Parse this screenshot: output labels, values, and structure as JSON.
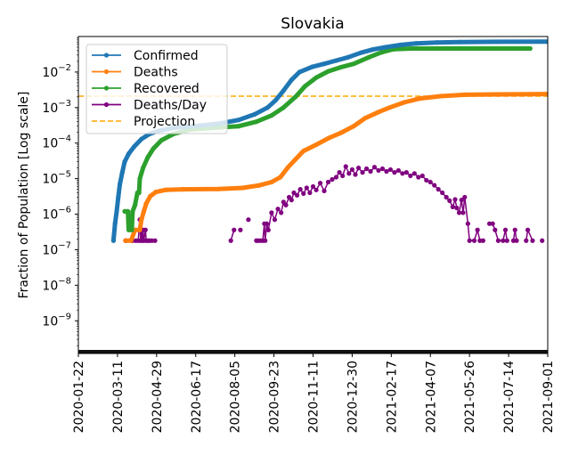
{
  "chart_data": {
    "type": "line",
    "title": "Slovakia",
    "xlabel": "",
    "ylabel": "Fraction of Population [Log scale]",
    "yscale": "log",
    "ylim": [
      1.2e-10,
      0.1
    ],
    "xlim": [
      "2020-01-22",
      "2021-09-01"
    ],
    "grid": false,
    "legend_position": "top-left",
    "x_ticks": [
      "2020-01-22",
      "2020-03-11",
      "2020-04-29",
      "2020-06-17",
      "2020-08-05",
      "2020-09-23",
      "2020-11-11",
      "2020-12-30",
      "2021-02-17",
      "2021-04-07",
      "2021-05-26",
      "2021-07-14",
      "2021-09-01"
    ],
    "y_ticks": [
      {
        "value": 1e-09,
        "label": "10",
        "exp": "−9"
      },
      {
        "value": 1e-08,
        "label": "10",
        "exp": "−8"
      },
      {
        "value": 1e-07,
        "label": "10",
        "exp": "−7"
      },
      {
        "value": 1e-06,
        "label": "10",
        "exp": "−6"
      },
      {
        "value": 1e-05,
        "label": "10",
        "exp": "−5"
      },
      {
        "value": 0.0001,
        "label": "10",
        "exp": "−4"
      },
      {
        "value": 0.001,
        "label": "10",
        "exp": "−3"
      },
      {
        "value": 0.01,
        "label": "10",
        "exp": "−2"
      }
    ],
    "series": [
      {
        "name": "Confirmed",
        "color": "#1f77b4",
        "style": "solid-marker",
        "points": [
          [
            "2020-03-06",
            1.8e-07
          ],
          [
            "2020-03-08",
            5.5e-07
          ],
          [
            "2020-03-10",
            1.2e-06
          ],
          [
            "2020-03-12",
            3e-06
          ],
          [
            "2020-03-14",
            7e-06
          ],
          [
            "2020-03-17",
            1.5e-05
          ],
          [
            "2020-03-20",
            3e-05
          ],
          [
            "2020-03-25",
            5e-05
          ],
          [
            "2020-04-01",
            8e-05
          ],
          [
            "2020-04-10",
            0.00013
          ],
          [
            "2020-04-20",
            0.00018
          ],
          [
            "2020-05-01",
            0.00022
          ],
          [
            "2020-05-20",
            0.00027
          ],
          [
            "2020-06-15",
            0.0003
          ],
          [
            "2020-07-15",
            0.00035
          ],
          [
            "2020-08-10",
            0.00045
          ],
          [
            "2020-08-30",
            0.00065
          ],
          [
            "2020-09-15",
            0.001
          ],
          [
            "2020-09-25",
            0.0016
          ],
          [
            "2020-10-05",
            0.003
          ],
          [
            "2020-10-15",
            0.006
          ],
          [
            "2020-10-25",
            0.01
          ],
          [
            "2020-11-10",
            0.014
          ],
          [
            "2020-11-25",
            0.017
          ],
          [
            "2020-12-10",
            0.021
          ],
          [
            "2020-12-25",
            0.026
          ],
          [
            "2021-01-10",
            0.035
          ],
          [
            "2021-01-25",
            0.043
          ],
          [
            "2021-02-10",
            0.05
          ],
          [
            "2021-03-01",
            0.058
          ],
          [
            "2021-03-20",
            0.064
          ],
          [
            "2021-04-15",
            0.068
          ],
          [
            "2021-05-15",
            0.07
          ],
          [
            "2021-07-01",
            0.071
          ],
          [
            "2021-09-01",
            0.072
          ]
        ]
      },
      {
        "name": "Deaths",
        "color": "#ff7f0e",
        "style": "solid-marker",
        "points": [
          [
            "2020-03-21",
            1.8e-07
          ],
          [
            "2020-03-28",
            1.8e-07
          ],
          [
            "2020-04-02",
            3.6e-07
          ],
          [
            "2020-04-08",
            3.6e-07
          ],
          [
            "2020-04-10",
            7e-07
          ],
          [
            "2020-04-13",
            1.2e-06
          ],
          [
            "2020-04-16",
            2e-06
          ],
          [
            "2020-04-21",
            3.2e-06
          ],
          [
            "2020-04-28",
            4.2e-06
          ],
          [
            "2020-05-10",
            4.8e-06
          ],
          [
            "2020-06-01",
            5e-06
          ],
          [
            "2020-07-15",
            5.1e-06
          ],
          [
            "2020-08-15",
            5.5e-06
          ],
          [
            "2020-09-05",
            6.5e-06
          ],
          [
            "2020-09-20",
            8e-06
          ],
          [
            "2020-10-01",
            1.1e-05
          ],
          [
            "2020-10-10",
            2e-05
          ],
          [
            "2020-10-20",
            3.5e-05
          ],
          [
            "2020-10-30",
            6e-05
          ],
          [
            "2020-11-15",
            9e-05
          ],
          [
            "2020-12-01",
            0.00014
          ],
          [
            "2020-12-15",
            0.00019
          ],
          [
            "2021-01-01",
            0.0003
          ],
          [
            "2021-01-15",
            0.0005
          ],
          [
            "2021-02-01",
            0.00075
          ],
          [
            "2021-02-15",
            0.001
          ],
          [
            "2021-03-05",
            0.0014
          ],
          [
            "2021-03-25",
            0.0018
          ],
          [
            "2021-04-20",
            0.0021
          ],
          [
            "2021-05-20",
            0.0023
          ],
          [
            "2021-07-01",
            0.00235
          ],
          [
            "2021-09-01",
            0.0024
          ]
        ]
      },
      {
        "name": "Recovered",
        "color": "#2ca02c",
        "style": "solid-marker",
        "points": [
          [
            "2020-03-20",
            1.2e-06
          ],
          [
            "2020-03-24",
            1.2e-06
          ],
          [
            "2020-03-25",
            3.6e-07
          ],
          [
            "2020-03-29",
            3.6e-07
          ],
          [
            "2020-03-30",
            1.2e-06
          ],
          [
            "2020-04-02",
            1.8e-06
          ],
          [
            "2020-04-05",
            4e-06
          ],
          [
            "2020-04-07",
            4e-06
          ],
          [
            "2020-04-08",
            1e-05
          ],
          [
            "2020-04-12",
            2e-05
          ],
          [
            "2020-04-18",
            4e-05
          ],
          [
            "2020-04-25",
            7e-05
          ],
          [
            "2020-05-05",
            0.00012
          ],
          [
            "2020-05-20",
            0.00018
          ],
          [
            "2020-06-10",
            0.00024
          ],
          [
            "2020-07-10",
            0.00027
          ],
          [
            "2020-08-10",
            0.0003
          ],
          [
            "2020-09-01",
            0.0004
          ],
          [
            "2020-09-20",
            0.0006
          ],
          [
            "2020-10-05",
            0.001
          ],
          [
            "2020-10-20",
            0.002
          ],
          [
            "2020-11-01",
            0.004
          ],
          [
            "2020-11-15",
            0.007
          ],
          [
            "2020-11-30",
            0.0105
          ],
          [
            "2020-12-15",
            0.0135
          ],
          [
            "2021-01-01",
            0.017
          ],
          [
            "2021-01-20",
            0.026
          ],
          [
            "2021-02-05",
            0.036
          ],
          [
            "2021-02-20",
            0.044
          ],
          [
            "2021-03-15",
            0.046
          ],
          [
            "2021-05-01",
            0.046
          ],
          [
            "2021-08-10",
            0.046
          ]
        ]
      },
      {
        "name": "Deaths/Day",
        "color": "#800080",
        "style": "solid-marker",
        "points": [
          [
            "2020-03-21",
            1.8e-07
          ],
          [
            "2020-03-22",
            1.8e-07
          ],
          [
            "2020-03-29",
            1.8e-07
          ],
          [
            "2020-03-30",
            1.8e-07
          ],
          [
            "2020-04-03",
            1.8e-07
          ],
          [
            "2020-04-06",
            1.8e-07
          ],
          [
            "2020-04-08",
            7e-07
          ],
          [
            "2020-04-09",
            1.8e-07
          ],
          [
            "2020-04-10",
            3.6e-07
          ],
          [
            "2020-04-11",
            1.8e-07
          ],
          [
            "2020-04-12",
            3.6e-07
          ],
          [
            "2020-04-13",
            1.8e-07
          ],
          [
            "2020-04-15",
            3.6e-07
          ],
          [
            "2020-04-16",
            1.8e-07
          ],
          [
            "2020-04-18",
            1.8e-07
          ],
          [
            "2020-04-20",
            1.8e-07
          ],
          [
            "2020-04-23",
            1.8e-07
          ],
          [
            "2020-04-27",
            1.8e-07
          ],
          [
            "2020-07-31",
            1.8e-07
          ],
          [
            "2020-08-04",
            3.6e-07
          ],
          [
            "2020-08-12",
            3.6e-07
          ],
          [
            "2020-08-22",
            7e-07
          ],
          [
            "2020-09-01",
            1.8e-07
          ],
          [
            "2020-09-03",
            1.8e-07
          ],
          [
            "2020-09-06",
            1.8e-07
          ],
          [
            "2020-09-09",
            1.8e-07
          ],
          [
            "2020-09-11",
            5.4e-07
          ],
          [
            "2020-09-12",
            1.8e-07
          ],
          [
            "2020-09-14",
            5.4e-07
          ],
          [
            "2020-09-16",
            3.6e-07
          ],
          [
            "2020-09-20",
            1.1e-06
          ],
          [
            "2020-09-24",
            7e-07
          ],
          [
            "2020-09-28",
            1.4e-06
          ],
          [
            "2020-10-02",
            1.1e-06
          ],
          [
            "2020-10-05",
            2.2e-06
          ],
          [
            "2020-10-08",
            1.8e-06
          ],
          [
            "2020-10-12",
            3e-06
          ],
          [
            "2020-10-15",
            2.5e-06
          ],
          [
            "2020-10-18",
            4e-06
          ],
          [
            "2020-10-22",
            3.4e-06
          ],
          [
            "2020-10-26",
            5e-06
          ],
          [
            "2020-10-30",
            3.8e-06
          ],
          [
            "2020-11-03",
            5.5e-06
          ],
          [
            "2020-11-07",
            4e-06
          ],
          [
            "2020-11-11",
            6e-06
          ],
          [
            "2020-11-15",
            4.8e-06
          ],
          [
            "2020-11-20",
            7.5e-06
          ],
          [
            "2020-11-25",
            4.5e-06
          ],
          [
            "2020-11-30",
            8e-06
          ],
          [
            "2020-12-05",
            9.5e-06
          ],
          [
            "2020-12-10",
            1.1e-05
          ],
          [
            "2020-12-14",
            1.5e-05
          ],
          [
            "2020-12-18",
            1.2e-05
          ],
          [
            "2020-12-22",
            2.2e-05
          ],
          [
            "2020-12-26",
            1.4e-05
          ],
          [
            "2020-12-30",
            1.8e-05
          ],
          [
            "2021-01-03",
            1.3e-05
          ],
          [
            "2021-01-07",
            2e-05
          ],
          [
            "2021-01-12",
            1.5e-05
          ],
          [
            "2021-01-17",
            1.9e-05
          ],
          [
            "2021-01-22",
            1.6e-05
          ],
          [
            "2021-01-27",
            2.1e-05
          ],
          [
            "2021-02-01",
            1.7e-05
          ],
          [
            "2021-02-06",
            1.9e-05
          ],
          [
            "2021-02-11",
            1.6e-05
          ],
          [
            "2021-02-16",
            1.8e-05
          ],
          [
            "2021-02-21",
            1.5e-05
          ],
          [
            "2021-02-26",
            1.7e-05
          ],
          [
            "2021-03-03",
            1.4e-05
          ],
          [
            "2021-03-08",
            1.5e-05
          ],
          [
            "2021-03-13",
            1.2e-05
          ],
          [
            "2021-03-18",
            1.4e-05
          ],
          [
            "2021-03-23",
            1.1e-05
          ],
          [
            "2021-03-28",
            1.2e-05
          ],
          [
            "2021-04-02",
            9e-06
          ],
          [
            "2021-04-07",
            8e-06
          ],
          [
            "2021-04-12",
            6.5e-06
          ],
          [
            "2021-04-17",
            5e-06
          ],
          [
            "2021-04-22",
            4e-06
          ],
          [
            "2021-04-27",
            3e-06
          ],
          [
            "2021-05-01",
            2.4e-06
          ],
          [
            "2021-05-05",
            1.6e-06
          ],
          [
            "2021-05-08",
            2.6e-06
          ],
          [
            "2021-05-10",
            1.5e-06
          ],
          [
            "2021-05-13",
            1.1e-06
          ],
          [
            "2021-05-16",
            2.5e-06
          ],
          [
            "2021-05-18",
            1.1e-06
          ],
          [
            "2021-05-20",
            3e-06
          ],
          [
            "2021-05-24",
            5.4e-07
          ],
          [
            "2021-05-26",
            1.8e-07
          ],
          [
            "2021-06-01",
            1.8e-07
          ],
          [
            "2021-06-05",
            3.6e-07
          ],
          [
            "2021-06-08",
            1.8e-07
          ],
          [
            "2021-06-12",
            1.8e-07
          ],
          [
            "2021-06-20",
            5.4e-07
          ],
          [
            "2021-06-24",
            5.4e-07
          ],
          [
            "2021-06-27",
            3.6e-07
          ],
          [
            "2021-07-01",
            1.8e-07
          ],
          [
            "2021-07-07",
            1.8e-07
          ],
          [
            "2021-07-10",
            3.6e-07
          ],
          [
            "2021-07-12",
            1.8e-07
          ],
          [
            "2021-07-20",
            1.8e-07
          ],
          [
            "2021-07-22",
            3.6e-07
          ],
          [
            "2021-07-24",
            1.8e-07
          ],
          [
            "2021-08-05",
            1.8e-07
          ],
          [
            "2021-08-07",
            3.6e-07
          ],
          [
            "2021-08-13",
            1.8e-07
          ],
          [
            "2021-08-25",
            1.8e-07
          ]
        ]
      }
    ],
    "projection": {
      "name": "Projection",
      "color": "#ffa500",
      "style": "dashed",
      "value": 0.0021
    }
  }
}
